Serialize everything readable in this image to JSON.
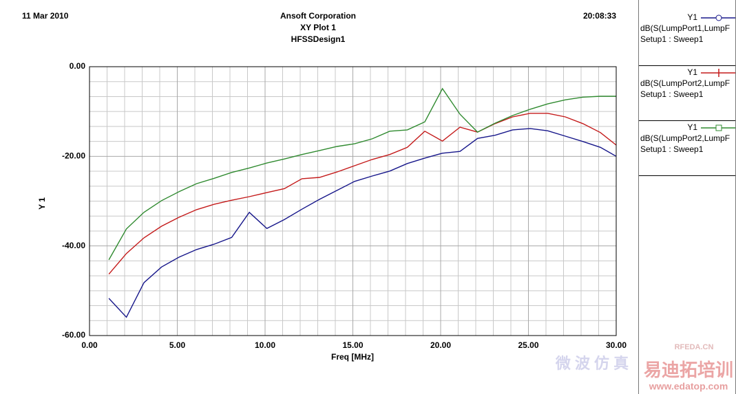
{
  "chart_data": {
    "type": "line",
    "header": {
      "date": "11 Mar 2010",
      "company": "Ansoft Corporation",
      "title": "XY Plot 1",
      "design": "HFSSDesign1",
      "time": "20:08:33"
    },
    "x_label": "Freq [MHz]",
    "y_label": "Y 1",
    "x": [
      1.1,
      2.1,
      3.1,
      4.1,
      5.1,
      6.1,
      7.1,
      8.1,
      9.1,
      10.1,
      11.1,
      12.1,
      13.1,
      14.1,
      15.1,
      16.1,
      17.1,
      18.1,
      19.1,
      20.1,
      21.1,
      22.1,
      23.1,
      24.1,
      25.1,
      26.1,
      27.1,
      28.1,
      29.1,
      30
    ],
    "series": [
      {
        "name": "dB(S(LumpPort1,LumpF",
        "trace": "Y1",
        "sweep": "Setup1 : Sweep1",
        "marker": "circle",
        "color": "#16168a",
        "values": [
          -51.7,
          -55.9,
          -48.2,
          -44.7,
          -42.5,
          -40.8,
          -39.6,
          -38.1,
          -32.5,
          -36.1,
          -34.1,
          -31.8,
          -29.6,
          -27.6,
          -25.6,
          -24.4,
          -23.3,
          -21.6,
          -20.4,
          -19.3,
          -18.9,
          -16.0,
          -15.3,
          -14.1,
          -13.8,
          -14.3,
          -15.5,
          -16.7,
          -18.0,
          -20.0
        ]
      },
      {
        "name": "dB(S(LumpPort2,LumpF",
        "trace": "Y1",
        "sweep": "Setup1 : Sweep1",
        "marker": "plus",
        "color": "#c41a1a",
        "values": [
          -46.3,
          -41.7,
          -38.2,
          -35.6,
          -33.6,
          -31.9,
          -30.7,
          -29.8,
          -29.0,
          -28.1,
          -27.2,
          -25.0,
          -24.7,
          -23.5,
          -22.1,
          -20.7,
          -19.6,
          -18.0,
          -14.4,
          -16.6,
          -13.5,
          -14.6,
          -12.7,
          -11.2,
          -10.4,
          -10.4,
          -11.2,
          -12.7,
          -14.7,
          -17.5
        ]
      },
      {
        "name": "dB(S(LumpPort2,LumpF",
        "trace": "Y1",
        "sweep": "Setup1 : Sweep1",
        "marker": "square",
        "color": "#2f8a2f",
        "values": [
          -43.1,
          -36.2,
          -32.5,
          -29.9,
          -27.9,
          -26.1,
          -24.9,
          -23.6,
          -22.6,
          -21.5,
          -20.6,
          -19.6,
          -18.7,
          -17.8,
          -17.2,
          -16.1,
          -14.4,
          -14.1,
          -12.3,
          -4.9,
          -10.6,
          -14.6,
          -12.6,
          -10.9,
          -9.5,
          -8.3,
          -7.4,
          -6.8,
          -6.6,
          -6.6
        ]
      }
    ],
    "xlim": [
      0,
      30
    ],
    "xticks": [
      {
        "value": 0,
        "label": "0.00"
      },
      {
        "value": 5,
        "label": "5.00"
      },
      {
        "value": 10,
        "label": "10.00"
      },
      {
        "value": 15,
        "label": "15.00"
      },
      {
        "value": 20,
        "label": "20.00"
      },
      {
        "value": 25,
        "label": "25.00"
      },
      {
        "value": 30,
        "label": "30.00"
      }
    ],
    "ylim": [
      -60,
      0
    ],
    "yticks": [
      {
        "value": 0,
        "label": "0.00"
      },
      {
        "value": -20,
        "label": "-20.00"
      },
      {
        "value": -40,
        "label": "-40.00"
      },
      {
        "value": -60,
        "label": "-60.00"
      }
    ],
    "grid": true,
    "watermark": [
      "RFEDA.CN",
      "微 波 仿 真",
      "易迪拓培训",
      "www.edatop.com"
    ]
  }
}
